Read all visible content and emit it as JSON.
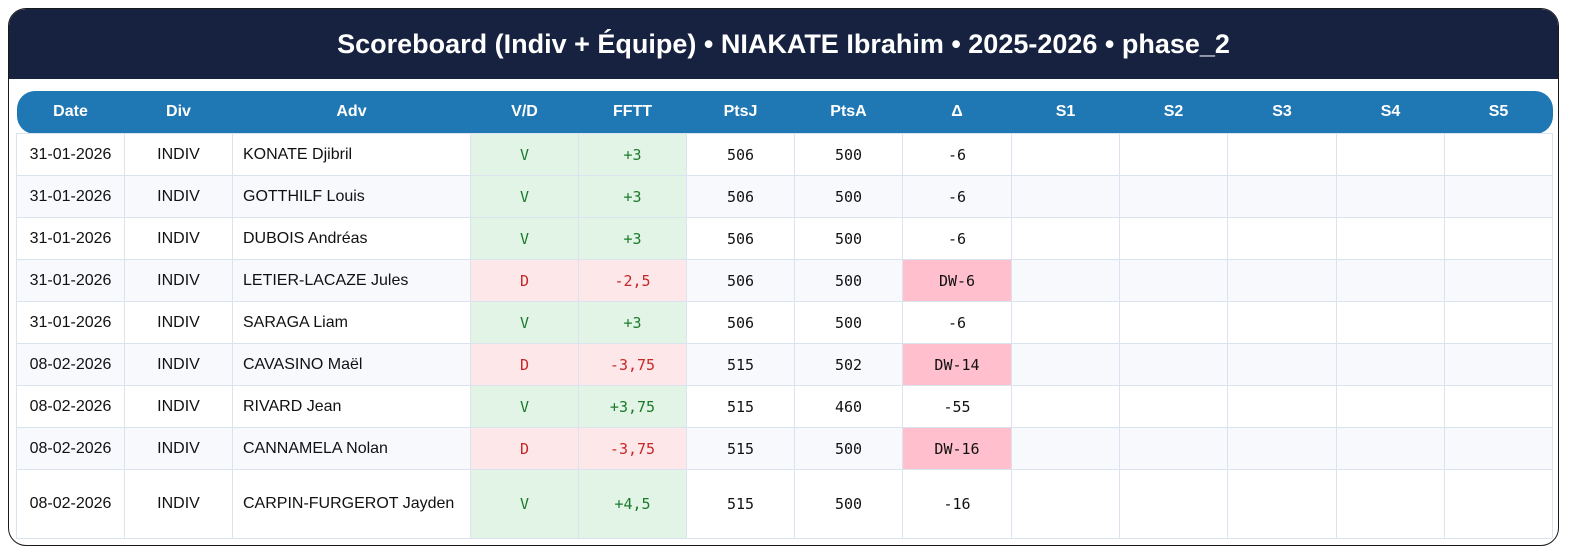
{
  "title": "Scoreboard (Indiv + Équipe) • NIAKATE Ibrahim • 2025-2026 • phase_2",
  "columns": [
    "Date",
    "Div",
    "Adv",
    "V/D",
    "FFTT",
    "PtsJ",
    "PtsA",
    "Δ",
    "S1",
    "S2",
    "S3",
    "S4",
    "S5"
  ],
  "colors": {
    "header_bg": "#16223f",
    "table_header_bg": "#1f77b4",
    "win_bg": "#e2f4e6",
    "loss_bg": "#fde7e9",
    "dw_bg": "#ffbfcc"
  },
  "rows": [
    {
      "date": "31-01-2026",
      "div": "INDIV",
      "adv": "KONATE Djibril",
      "vd": "V",
      "fftt": "+3",
      "ptsj": "506",
      "ptsa": "500",
      "delta": "-6",
      "dw": false
    },
    {
      "date": "31-01-2026",
      "div": "INDIV",
      "adv": "GOTTHILF Louis",
      "vd": "V",
      "fftt": "+3",
      "ptsj": "506",
      "ptsa": "500",
      "delta": "-6",
      "dw": false
    },
    {
      "date": "31-01-2026",
      "div": "INDIV",
      "adv": "DUBOIS Andréas",
      "vd": "V",
      "fftt": "+3",
      "ptsj": "506",
      "ptsa": "500",
      "delta": "-6",
      "dw": false
    },
    {
      "date": "31-01-2026",
      "div": "INDIV",
      "adv": "LETIER-LACAZE Jules",
      "vd": "D",
      "fftt": "-2,5",
      "ptsj": "506",
      "ptsa": "500",
      "delta": "DW-6",
      "dw": true
    },
    {
      "date": "31-01-2026",
      "div": "INDIV",
      "adv": "SARAGA Liam",
      "vd": "V",
      "fftt": "+3",
      "ptsj": "506",
      "ptsa": "500",
      "delta": "-6",
      "dw": false
    },
    {
      "date": "08-02-2026",
      "div": "INDIV",
      "adv": "CAVASINO Maël",
      "vd": "D",
      "fftt": "-3,75",
      "ptsj": "515",
      "ptsa": "502",
      "delta": "DW-14",
      "dw": true
    },
    {
      "date": "08-02-2026",
      "div": "INDIV",
      "adv": "RIVARD Jean",
      "vd": "V",
      "fftt": "+3,75",
      "ptsj": "515",
      "ptsa": "460",
      "delta": "-55",
      "dw": false
    },
    {
      "date": "08-02-2026",
      "div": "INDIV",
      "adv": "CANNAMELA Nolan",
      "vd": "D",
      "fftt": "-3,75",
      "ptsj": "515",
      "ptsa": "500",
      "delta": "DW-16",
      "dw": true
    },
    {
      "date": "08-02-2026",
      "div": "INDIV",
      "adv": "CARPIN-FURGEROT Jayden",
      "vd": "V",
      "fftt": "+4,5",
      "ptsj": "515",
      "ptsa": "500",
      "delta": "-16",
      "dw": false
    }
  ]
}
